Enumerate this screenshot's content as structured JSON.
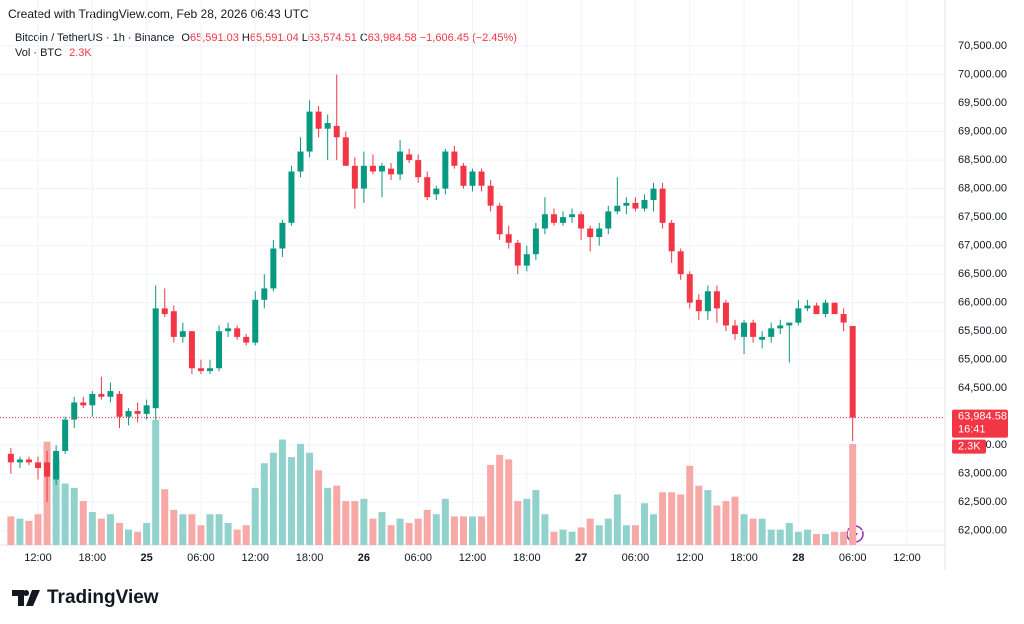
{
  "watermark": "Created with TradingView.com, Feb 28, 2026 06:43 UTC",
  "logo": "TradingView",
  "chart_data": {
    "type": "candlestick",
    "legend": {
      "symbol": "Bitcoin / TetherUS · 1h · Binance",
      "open_key": "O",
      "open": "65,591.03",
      "high_key": "H",
      "high": "65,591.04",
      "low_key": "L",
      "low": "63,574.51",
      "close_key": "C",
      "close": "63,984.58",
      "change": "−1,606.45 (−2.45%)",
      "volume_key": "Vol · BTC"
    },
    "up_color": "#089981",
    "down_color": "#f23645",
    "volume_up_color": "#92d2cc",
    "volume_down_color": "#f7a9a7",
    "xlim": [
      -1.2,
      103.2
    ],
    "xticks": [
      {
        "value": 3,
        "label": "12:00"
      },
      {
        "value": 9,
        "label": "18:00"
      },
      {
        "value": 15,
        "label": "25"
      },
      {
        "value": 21,
        "label": "06:00"
      },
      {
        "value": 27,
        "label": "12:00"
      },
      {
        "value": 33,
        "label": "18:00"
      },
      {
        "value": 39,
        "label": "26"
      },
      {
        "value": 45,
        "label": "06:00"
      },
      {
        "value": 51,
        "label": "12:00"
      },
      {
        "value": 57,
        "label": "18:00"
      },
      {
        "value": 63,
        "label": "27"
      },
      {
        "value": 69,
        "label": "06:00"
      },
      {
        "value": 75,
        "label": "12:00"
      },
      {
        "value": 81,
        "label": "18:00"
      },
      {
        "value": 87,
        "label": "28"
      },
      {
        "value": 93,
        "label": "06:00"
      },
      {
        "value": 99,
        "label": "12:00"
      }
    ],
    "ylim": [
      61751,
      71307
    ],
    "yticks": [
      {
        "value": 62000,
        "label": "62,000.00"
      },
      {
        "value": 62500,
        "label": "62,500.00"
      },
      {
        "value": 63000,
        "label": "63,000.00"
      },
      {
        "value": 63500,
        "label": "63,500.00"
      },
      {
        "value": 64000,
        "label": "64,000.00"
      },
      {
        "value": 64500,
        "label": "64,500.00"
      },
      {
        "value": 65000,
        "label": "65,000.00"
      },
      {
        "value": 65500,
        "label": "65,500.00"
      },
      {
        "value": 66000,
        "label": "66,000.00"
      },
      {
        "value": 66500,
        "label": "66,500.00"
      },
      {
        "value": 67000,
        "label": "67,000.00"
      },
      {
        "value": 67500,
        "label": "67,500.00"
      },
      {
        "value": 68000,
        "label": "68,000.00"
      },
      {
        "value": 68500,
        "label": "68,500.00"
      },
      {
        "value": 69000,
        "label": "69,000.00"
      },
      {
        "value": 69500,
        "label": "69,500.00"
      },
      {
        "value": 70000,
        "label": "70,000.00"
      },
      {
        "value": 70500,
        "label": "70,500.00"
      }
    ],
    "y2lim": [
      0,
      3800
    ],
    "last_price": {
      "value": 63984.58,
      "label": "63,984.58"
    },
    "countdown": "16:41",
    "last_volume": {
      "value": 2300,
      "label": "2.3K"
    },
    "open": [
      63350,
      63200,
      63250,
      63200,
      63200,
      62900,
      63400,
      63950,
      64250,
      64200,
      64400,
      64350,
      64400,
      64000,
      64100,
      64050,
      64150,
      65900,
      65850,
      65400,
      65500,
      64850,
      64800,
      64850,
      65500,
      65550,
      65400,
      65300,
      66050,
      66250,
      66950,
      67400,
      68300,
      68650,
      69350,
      69050,
      69100,
      68900,
      68400,
      68000,
      68400,
      68300,
      68350,
      68250,
      68600,
      68500,
      68200,
      67900,
      68000,
      68650,
      68400,
      68050,
      68300,
      68050,
      67700,
      67200,
      67050,
      66650,
      66850,
      67300,
      67550,
      67400,
      67500,
      67550,
      67300,
      67150,
      67300,
      67600,
      67700,
      67750,
      67650,
      67800,
      68000,
      67400,
      66900,
      66500,
      66050,
      65850,
      66200,
      66000,
      65600,
      65400,
      65650,
      65350,
      65400,
      65550,
      65600,
      65650,
      65900,
      65950,
      65800,
      66000,
      65800,
      65591.03
    ],
    "high": [
      63450,
      63300,
      63300,
      63300,
      63400,
      63500,
      64000,
      64350,
      64350,
      64450,
      64700,
      64600,
      64450,
      64150,
      64250,
      64300,
      66300,
      66250,
      65950,
      65650,
      65500,
      65000,
      65000,
      65600,
      65650,
      65600,
      65450,
      66200,
      66500,
      67100,
      67450,
      68400,
      68900,
      69550,
      69450,
      69300,
      70000,
      69000,
      68550,
      68650,
      68600,
      68450,
      68450,
      68850,
      68700,
      68600,
      68300,
      68050,
      68700,
      68750,
      68450,
      68350,
      68350,
      68150,
      67750,
      67350,
      67100,
      67000,
      67400,
      67850,
      67650,
      67600,
      67650,
      67600,
      67350,
      67400,
      67700,
      68200,
      67850,
      67850,
      67900,
      68100,
      68100,
      67450,
      66950,
      66550,
      66150,
      66300,
      66300,
      66050,
      65700,
      65700,
      65700,
      65500,
      65650,
      65700,
      65650,
      66050,
      66050,
      66000,
      66050,
      66000,
      65900,
      65591.04
    ],
    "low": [
      63000,
      63100,
      63150,
      62900,
      62500,
      62800,
      63350,
      63800,
      64150,
      64000,
      64300,
      64250,
      63800,
      63850,
      63900,
      63950,
      63950,
      65750,
      65300,
      65300,
      64750,
      64750,
      64750,
      64800,
      65400,
      65350,
      65250,
      65250,
      65900,
      66200,
      66800,
      67350,
      68200,
      68550,
      68900,
      68500,
      68500,
      68400,
      67650,
      67750,
      68250,
      67850,
      68150,
      68150,
      68450,
      68100,
      67800,
      67800,
      67900,
      68350,
      68000,
      67950,
      67950,
      67600,
      67100,
      66950,
      66500,
      66550,
      66750,
      67200,
      67350,
      67350,
      67400,
      67100,
      66900,
      67000,
      67200,
      67550,
      67550,
      67600,
      67600,
      67600,
      67300,
      66700,
      66400,
      65900,
      65700,
      65700,
      65650,
      65500,
      65350,
      65100,
      65300,
      65200,
      65300,
      65450,
      64950,
      65600,
      65850,
      65800,
      65750,
      65800,
      65500,
      63574.51
    ],
    "close": [
      63200,
      63250,
      63200,
      63100,
      62950,
      63400,
      63950,
      64250,
      64200,
      64400,
      64350,
      64450,
      64000,
      64100,
      64050,
      64200,
      65900,
      65800,
      65400,
      65500,
      64850,
      64800,
      64850,
      65500,
      65550,
      65400,
      65300,
      66050,
      66250,
      66950,
      67400,
      68300,
      68650,
      69350,
      69050,
      69150,
      68900,
      68400,
      68000,
      68400,
      68300,
      68400,
      68250,
      68650,
      68500,
      68200,
      67850,
      68000,
      68650,
      68400,
      68050,
      68300,
      68050,
      67700,
      67200,
      67050,
      66650,
      66850,
      67300,
      67550,
      67400,
      67500,
      67550,
      67300,
      67150,
      67300,
      67600,
      67700,
      67750,
      67650,
      67800,
      68000,
      67400,
      66900,
      66500,
      66000,
      65850,
      66200,
      65900,
      65600,
      65450,
      65650,
      65400,
      65400,
      65550,
      65600,
      65650,
      65900,
      65950,
      65800,
      66000,
      65800,
      65650,
      63984.58
    ],
    "volume": {
      "axis": "y2",
      "values": [
        650,
        600,
        550,
        700,
        2350,
        1950,
        1400,
        1300,
        1000,
        750,
        600,
        700,
        500,
        350,
        300,
        500,
        2850,
        1270,
        800,
        700,
        700,
        450,
        700,
        700,
        500,
        350,
        450,
        1300,
        1860,
        2100,
        2400,
        2000,
        2300,
        2100,
        1700,
        1300,
        1350,
        1000,
        1000,
        1050,
        600,
        750,
        450,
        600,
        500,
        600,
        800,
        700,
        1050,
        650,
        650,
        650,
        650,
        1820,
        2050,
        1950,
        1000,
        1050,
        1250,
        700,
        300,
        350,
        300,
        400,
        600,
        450,
        600,
        1150,
        450,
        450,
        950,
        700,
        1200,
        1200,
        1150,
        1800,
        1350,
        1250,
        900,
        1000,
        1100,
        700,
        600,
        600,
        350,
        350,
        500,
        300,
        350,
        250,
        250,
        300,
        300,
        2300
      ]
    }
  }
}
